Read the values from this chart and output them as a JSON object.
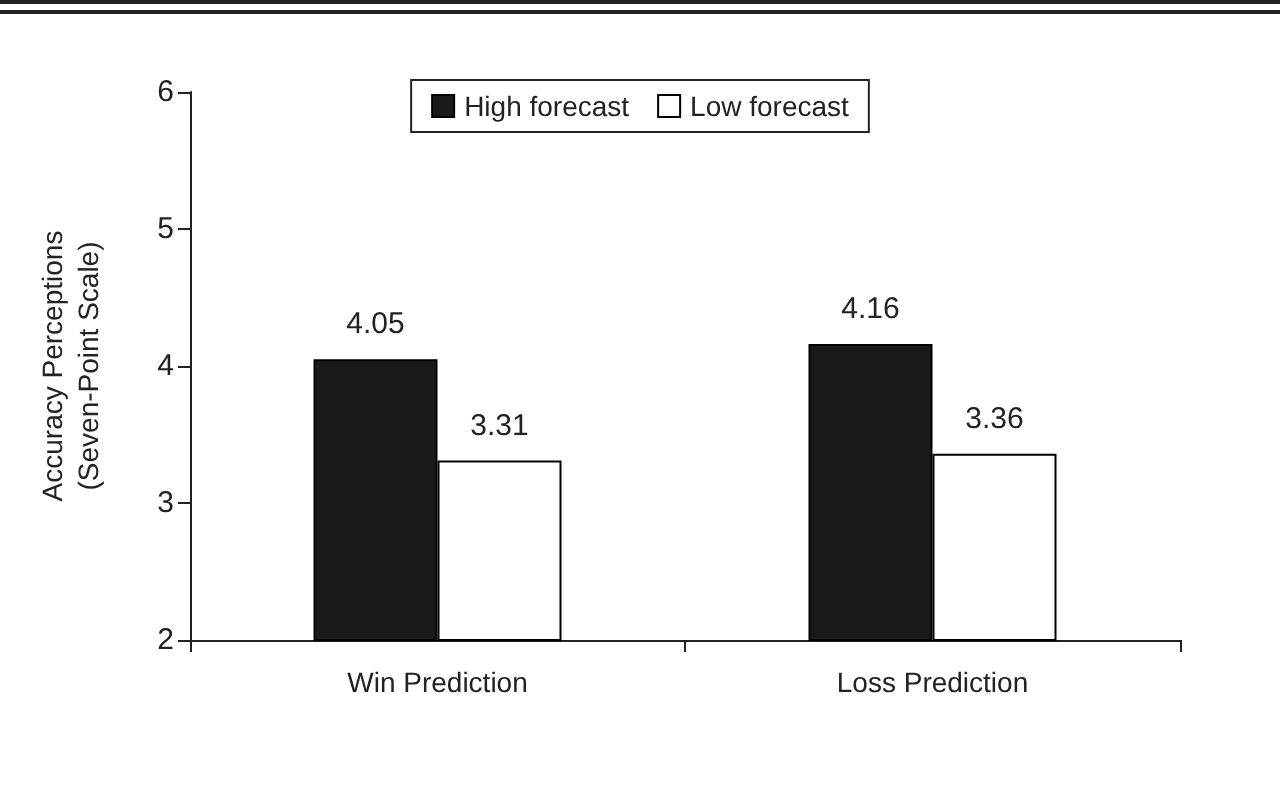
{
  "chart_data": {
    "type": "bar",
    "ylabel": "Accuracy Perceptions\n(Seven-Point Scale)",
    "categories": [
      "Win Prediction",
      "Loss Prediction"
    ],
    "series": [
      {
        "name": "High forecast",
        "color": "#1a1a1a",
        "values": [
          4.05,
          4.16
        ]
      },
      {
        "name": "Low forecast",
        "color": "#ffffff",
        "values": [
          3.31,
          3.36
        ]
      }
    ],
    "ylim": [
      2,
      6
    ],
    "yticks": [
      2,
      3,
      4,
      5,
      6
    ],
    "grid": false,
    "legend": "top",
    "data_labels": true
  }
}
